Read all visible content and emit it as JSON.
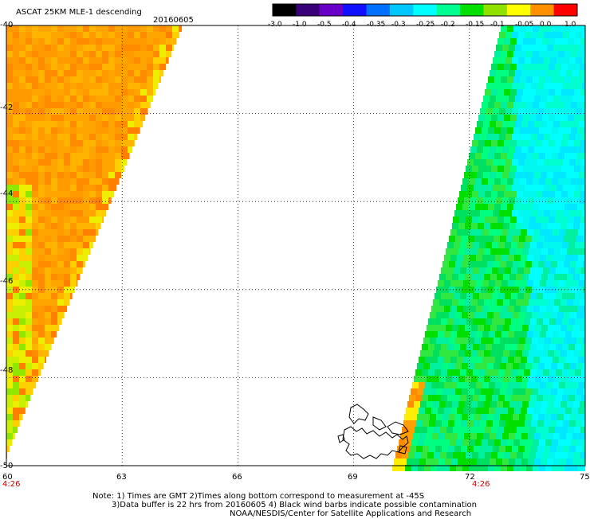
{
  "title": "ASCAT 25KM MLE-1 descending",
  "date": "20160605",
  "colorbar": {
    "labels": [
      "-3.0",
      "-1.0",
      "-0.5",
      "-0.4",
      "-0.35",
      "-0.3",
      "-0.25",
      "-0.2",
      "-0.15",
      "-0.1",
      "-0.05",
      "0.0",
      "1.0"
    ],
    "colors": [
      "#000000",
      "#3a0078",
      "#6a00c8",
      "#1010ff",
      "#0070ff",
      "#00c8ff",
      "#00ffff",
      "#00ff90",
      "#00e000",
      "#90e000",
      "#ffff00",
      "#ff9000",
      "#ff0000"
    ]
  },
  "axes": {
    "lat_labels": [
      "-40",
      "-42",
      "-44",
      "-46",
      "-48",
      "-50"
    ],
    "lon_labels": [
      "60",
      "63",
      "66",
      "69",
      "72",
      "75"
    ],
    "time_labels": [
      "4:26",
      "4:26"
    ],
    "lat_range": [
      -40,
      -50
    ],
    "lon_range": [
      60,
      75
    ]
  },
  "notes": {
    "line1": "Note: 1) Times are GMT 2)Times along bottom correspond to measurement at -45S",
    "line2": "3)Data buffer is 22 hrs from 20160605 4) Black wind barbs indicate possible contamination",
    "line3": "NOAA/NESDIS/Center for Satellite Applications and Research"
  }
}
